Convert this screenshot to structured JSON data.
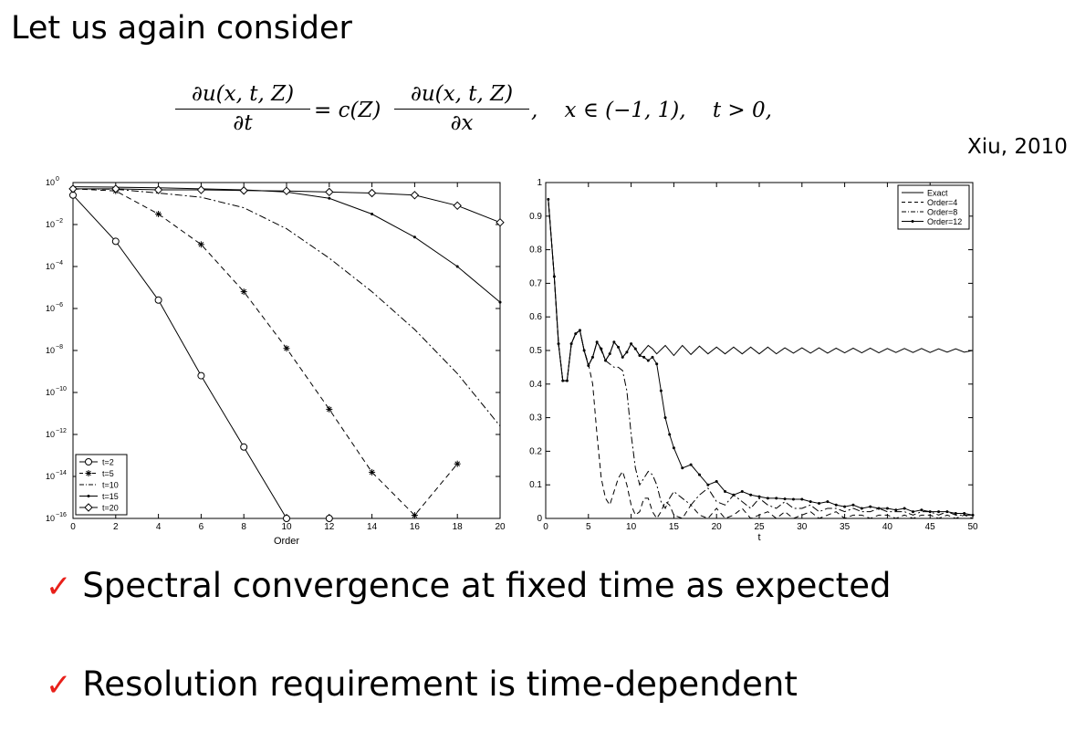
{
  "heading": "Let us again consider",
  "equation": {
    "lhs_num": "∂u(x, t, Z)",
    "lhs_den": "∂t",
    "eq_c": "= c(Z)",
    "rhs_num": "∂u(x, t, Z)",
    "rhs_den": "∂x",
    "domain": ",    x ∈ (−1, 1),    t > 0,"
  },
  "citation": "Xiu, 2010",
  "bullets": [
    {
      "mark": "✓",
      "text": "Spectral convergence at fixed time as expected"
    },
    {
      "mark": "✓",
      "text": "Resolution requirement is time-dependent"
    }
  ],
  "chart_data": [
    {
      "type": "line",
      "xlabel": "Order",
      "ylabel": "",
      "xlim": [
        0,
        20
      ],
      "ylim_exponent": [
        -16,
        0
      ],
      "yscale": "log",
      "xticks": [
        "0",
        "2",
        "4",
        "6",
        "8",
        "10",
        "12",
        "14",
        "16",
        "18",
        "20"
      ],
      "yticks": [
        {
          "base": "10",
          "exp": "0"
        },
        {
          "base": "10",
          "exp": "−2"
        },
        {
          "base": "10",
          "exp": "−4"
        },
        {
          "base": "10",
          "exp": "−6"
        },
        {
          "base": "10",
          "exp": "−8"
        },
        {
          "base": "10",
          "exp": "−10"
        },
        {
          "base": "10",
          "exp": "−12"
        },
        {
          "base": "10",
          "exp": "−14"
        },
        {
          "base": "10",
          "exp": "−16"
        }
      ],
      "legend_position": "bottom-left",
      "series": [
        {
          "name": "t=2",
          "style": "solid",
          "marker": "circle",
          "x": [
            0,
            2,
            4,
            6,
            8,
            10,
            12
          ],
          "log10_y": [
            -0.6,
            -2.8,
            -5.6,
            -9.2,
            -12.6,
            -16.0,
            -16.0
          ]
        },
        {
          "name": "t=5",
          "style": "dashed",
          "marker": "star",
          "x": [
            0,
            2,
            4,
            6,
            8,
            10,
            12,
            14,
            16,
            18
          ],
          "log10_y": [
            -0.3,
            -0.4,
            -1.5,
            -2.95,
            -5.2,
            -7.9,
            -10.8,
            -13.8,
            -15.85,
            -13.4
          ]
        },
        {
          "name": "t=10",
          "style": "dashdot",
          "marker": "none",
          "x": [
            0,
            2,
            4,
            6,
            8,
            10,
            12,
            14,
            16,
            18,
            20
          ],
          "log10_y": [
            -0.3,
            -0.32,
            -0.5,
            -0.7,
            -1.2,
            -2.2,
            -3.6,
            -5.2,
            -7.0,
            -9.1,
            -11.6
          ]
        },
        {
          "name": "t=15",
          "style": "solid",
          "marker": "dot",
          "x": [
            0,
            2,
            4,
            6,
            8,
            10,
            12,
            14,
            16,
            18,
            20
          ],
          "log10_y": [
            -0.2,
            -0.22,
            -0.25,
            -0.3,
            -0.35,
            -0.45,
            -0.75,
            -1.5,
            -2.6,
            -4.0,
            -5.7
          ]
        },
        {
          "name": "t=20",
          "style": "solid",
          "marker": "diamond",
          "x": [
            0,
            2,
            4,
            6,
            8,
            10,
            12,
            14,
            16,
            18,
            20
          ],
          "log10_y": [
            -0.3,
            -0.3,
            -0.35,
            -0.35,
            -0.38,
            -0.4,
            -0.45,
            -0.5,
            -0.6,
            -1.1,
            -1.9
          ]
        }
      ]
    },
    {
      "type": "line",
      "xlabel": "t",
      "ylabel": "",
      "xlim": [
        0,
        50
      ],
      "ylim": [
        0,
        1
      ],
      "xticks": [
        "0",
        "5",
        "10",
        "15",
        "20",
        "25",
        "30",
        "35",
        "40",
        "45",
        "50"
      ],
      "yticks": [
        "0",
        "0.1",
        "0.2",
        "0.3",
        "0.4",
        "0.5",
        "0.6",
        "0.7",
        "0.8",
        "0.9",
        "1"
      ],
      "legend_position": "top-right",
      "series": [
        {
          "name": "Exact",
          "style": "solid",
          "x": [
            0.3,
            1,
            1.5,
            2,
            2.5,
            3,
            3.5,
            4,
            4.5,
            5,
            5.5,
            6,
            6.5,
            7,
            7.5,
            8,
            8.5,
            9,
            9.5,
            10,
            10.5,
            11,
            11.5,
            12,
            12.5,
            13,
            14,
            15,
            16,
            17,
            18,
            19,
            20,
            21,
            22,
            23,
            24,
            25,
            26,
            27,
            28,
            29,
            30,
            31,
            32,
            33,
            34,
            35,
            36,
            37,
            38,
            39,
            40,
            41,
            42,
            43,
            44,
            45,
            46,
            47,
            48,
            49,
            50
          ],
          "y": [
            0.95,
            0.72,
            0.52,
            0.41,
            0.41,
            0.52,
            0.55,
            0.56,
            0.5,
            0.455,
            0.48,
            0.525,
            0.505,
            0.47,
            0.49,
            0.525,
            0.51,
            0.48,
            0.495,
            0.52,
            0.505,
            0.485,
            0.5,
            0.515,
            0.505,
            0.49,
            0.515,
            0.485,
            0.515,
            0.488,
            0.513,
            0.49,
            0.51,
            0.49,
            0.51,
            0.49,
            0.51,
            0.49,
            0.51,
            0.49,
            0.508,
            0.492,
            0.508,
            0.492,
            0.508,
            0.492,
            0.507,
            0.493,
            0.507,
            0.493,
            0.507,
            0.493,
            0.506,
            0.494,
            0.506,
            0.494,
            0.506,
            0.494,
            0.505,
            0.495,
            0.505,
            0.495,
            0.5
          ]
        },
        {
          "name": "Order=4",
          "style": "dashed",
          "x": [
            0.3,
            1,
            1.5,
            2,
            2.5,
            3,
            3.5,
            4,
            4.5,
            5,
            5.5,
            6,
            6.5,
            7,
            7.5,
            8,
            8.5,
            9,
            9.5,
            10,
            10.5,
            11,
            11.5,
            12,
            12.5,
            13,
            13.5,
            14,
            14.5,
            15,
            16,
            17,
            18,
            19,
            20,
            21,
            22,
            23,
            24,
            25,
            26,
            27,
            28,
            29,
            30,
            31,
            32,
            33,
            34,
            35,
            36,
            37,
            38,
            39,
            40,
            41,
            42,
            43,
            44,
            45,
            46,
            47,
            48,
            49,
            50
          ],
          "y": [
            0.95,
            0.72,
            0.52,
            0.41,
            0.41,
            0.52,
            0.55,
            0.56,
            0.5,
            0.46,
            0.4,
            0.25,
            0.12,
            0.06,
            0.04,
            0.08,
            0.12,
            0.14,
            0.1,
            0.04,
            0.01,
            0.02,
            0.06,
            0.06,
            0.02,
            0.0,
            0.02,
            0.05,
            0.04,
            0.01,
            0.0,
            0.04,
            0.01,
            0.0,
            0.03,
            0.0,
            0.01,
            0.03,
            0.0,
            0.01,
            0.02,
            0.0,
            0.02,
            0.0,
            0.01,
            0.02,
            0.0,
            0.01,
            0.02,
            0.0,
            0.01,
            0.01,
            0.0,
            0.01,
            0.01,
            0.0,
            0.01,
            0.0,
            0.01,
            0.01,
            0.0,
            0.01,
            0.0,
            0.01,
            0.0
          ]
        },
        {
          "name": "Order=8",
          "style": "dashdot",
          "x": [
            0.3,
            1,
            1.5,
            2,
            2.5,
            3,
            3.5,
            4,
            4.5,
            5,
            5.5,
            6,
            6.5,
            7,
            7.5,
            8,
            8.5,
            9,
            9.5,
            10,
            10.5,
            11,
            11.5,
            12,
            12.5,
            13,
            13.5,
            14,
            14.5,
            15,
            16,
            17,
            18,
            19,
            20,
            21,
            22,
            23,
            24,
            25,
            26,
            27,
            28,
            29,
            30,
            31,
            32,
            33,
            34,
            35,
            36,
            37,
            38,
            39,
            40,
            41,
            42,
            43,
            44,
            45,
            46,
            47,
            48,
            49,
            50
          ],
          "y": [
            0.95,
            0.72,
            0.52,
            0.41,
            0.41,
            0.52,
            0.55,
            0.56,
            0.5,
            0.455,
            0.48,
            0.525,
            0.5,
            0.47,
            0.46,
            0.45,
            0.45,
            0.44,
            0.38,
            0.25,
            0.15,
            0.1,
            0.12,
            0.14,
            0.13,
            0.1,
            0.05,
            0.03,
            0.06,
            0.08,
            0.06,
            0.04,
            0.07,
            0.09,
            0.05,
            0.04,
            0.07,
            0.05,
            0.03,
            0.06,
            0.04,
            0.03,
            0.05,
            0.03,
            0.03,
            0.04,
            0.02,
            0.03,
            0.03,
            0.02,
            0.03,
            0.02,
            0.02,
            0.03,
            0.02,
            0.02,
            0.02,
            0.01,
            0.02,
            0.02,
            0.01,
            0.02,
            0.01,
            0.01,
            0.01
          ]
        },
        {
          "name": "Order=12",
          "style": "solid",
          "marker": "dot",
          "x": [
            0.3,
            1,
            1.5,
            2,
            2.5,
            3,
            3.5,
            4,
            4.5,
            5,
            5.5,
            6,
            6.5,
            7,
            7.5,
            8,
            8.5,
            9,
            9.5,
            10,
            10.5,
            11,
            11.5,
            12,
            12.5,
            13,
            13.5,
            14,
            14.5,
            15,
            16,
            17,
            18,
            19,
            20,
            21,
            22,
            23,
            24,
            25,
            26,
            27,
            28,
            29,
            30,
            31,
            32,
            33,
            34,
            35,
            36,
            37,
            38,
            39,
            40,
            41,
            42,
            43,
            44,
            45,
            46,
            47,
            48,
            49,
            50
          ],
          "y": [
            0.95,
            0.72,
            0.52,
            0.41,
            0.41,
            0.52,
            0.55,
            0.56,
            0.5,
            0.455,
            0.48,
            0.525,
            0.505,
            0.47,
            0.49,
            0.525,
            0.51,
            0.48,
            0.495,
            0.52,
            0.505,
            0.485,
            0.48,
            0.47,
            0.48,
            0.46,
            0.38,
            0.3,
            0.25,
            0.21,
            0.15,
            0.16,
            0.13,
            0.1,
            0.11,
            0.08,
            0.07,
            0.08,
            0.07,
            0.065,
            0.06,
            0.06,
            0.058,
            0.057,
            0.057,
            0.05,
            0.045,
            0.05,
            0.04,
            0.035,
            0.04,
            0.03,
            0.035,
            0.03,
            0.03,
            0.025,
            0.03,
            0.02,
            0.025,
            0.02,
            0.02,
            0.02,
            0.015,
            0.015,
            0.01
          ]
        }
      ]
    }
  ]
}
